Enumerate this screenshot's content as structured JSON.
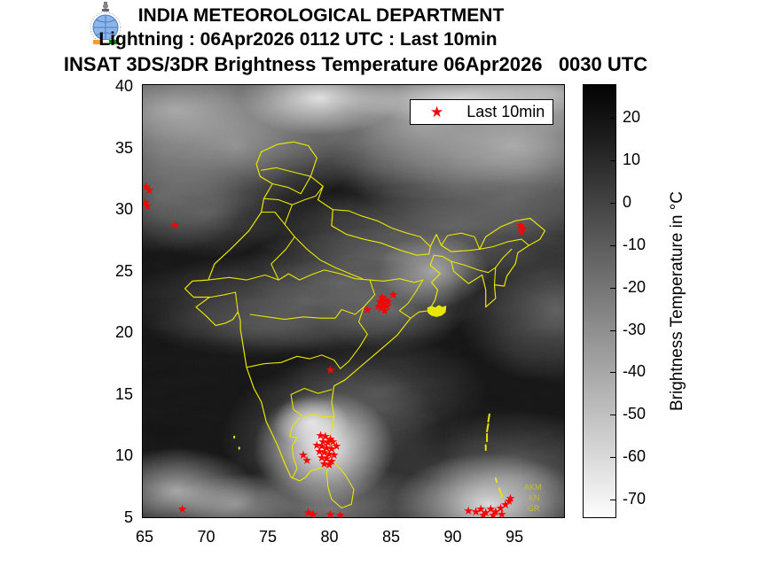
{
  "header": {
    "org": "INDIA METEOROLOGICAL DEPARTMENT",
    "subtitle": "Lightning : 06Apr2026 0112 UTC : Last 10min",
    "product_title": "INSAT 3DS/3DR Brightness Temperature 06Apr2026   0030 UTC"
  },
  "legend": {
    "marker_glyph": "★",
    "marker_color": "#ff0000",
    "label": "Last 10min"
  },
  "map_annotations": {
    "island_labels": [
      "AKM",
      "KN",
      "GR"
    ],
    "boundary_color": "#e8e600",
    "lightning_color": "#ff0000"
  },
  "colorbar": {
    "label": "Brightness Temperature in  °C",
    "ticks": [
      20,
      10,
      0,
      -10,
      -20,
      -30,
      -40,
      -50,
      -60,
      -70
    ],
    "top_color": "#000000",
    "bottom_color": "#ffffff",
    "value_range": [
      28,
      -74
    ]
  },
  "chart_data": {
    "type": "heatmap",
    "title": "INSAT 3DS/3DR Brightness Temperature 06Apr2026   0030 UTC",
    "x_ticks": [
      65,
      70,
      75,
      80,
      85,
      90,
      95
    ],
    "y_ticks": [
      40,
      35,
      30,
      25,
      20,
      15,
      10,
      5
    ],
    "x_range": [
      64.8,
      99.1
    ],
    "y_range": [
      5.0,
      40.2
    ],
    "colorbar_label": "Brightness Temperature in  °C",
    "colorbar_ticks": [
      20,
      10,
      0,
      -10,
      -20,
      -30,
      -40,
      -50,
      -60,
      -70
    ],
    "lightning_last10min_lonlat": [
      [
        65.05,
        31.9
      ],
      [
        65.3,
        31.6
      ],
      [
        65.0,
        30.6
      ],
      [
        65.15,
        30.3
      ],
      [
        67.4,
        28.8
      ],
      [
        95.4,
        28.7
      ],
      [
        95.6,
        28.5
      ],
      [
        95.5,
        28.2
      ],
      [
        84.2,
        22.9
      ],
      [
        84.5,
        22.7
      ],
      [
        84.0,
        22.5
      ],
      [
        84.3,
        22.3
      ],
      [
        84.6,
        22.2
      ],
      [
        84.1,
        22.0
      ],
      [
        84.4,
        21.8
      ],
      [
        84.7,
        22.5
      ],
      [
        83.9,
        22.2
      ],
      [
        84.3,
        22.6
      ],
      [
        83.0,
        21.9
      ],
      [
        85.1,
        23.1
      ],
      [
        80.0,
        17.0
      ],
      [
        79.2,
        11.7
      ],
      [
        79.6,
        11.6
      ],
      [
        80.0,
        11.4
      ],
      [
        79.4,
        11.2
      ],
      [
        79.8,
        11.1
      ],
      [
        80.2,
        11.2
      ],
      [
        78.9,
        10.9
      ],
      [
        79.3,
        10.8
      ],
      [
        79.7,
        10.7
      ],
      [
        80.1,
        10.6
      ],
      [
        80.5,
        10.8
      ],
      [
        79.1,
        10.4
      ],
      [
        79.5,
        10.3
      ],
      [
        79.9,
        10.2
      ],
      [
        80.3,
        10.1
      ],
      [
        79.3,
        9.9
      ],
      [
        79.7,
        9.8
      ],
      [
        80.1,
        9.6
      ],
      [
        79.5,
        9.4
      ],
      [
        79.9,
        9.3
      ],
      [
        78.1,
        9.7
      ],
      [
        77.8,
        10.1
      ],
      [
        68.0,
        5.7
      ],
      [
        78.2,
        5.4
      ],
      [
        78.6,
        5.3
      ],
      [
        80.0,
        5.3
      ],
      [
        80.8,
        5.2
      ],
      [
        91.2,
        5.6
      ],
      [
        91.8,
        5.5
      ],
      [
        92.2,
        5.7
      ],
      [
        92.6,
        5.4
      ],
      [
        93.0,
        5.7
      ],
      [
        93.4,
        5.5
      ],
      [
        93.8,
        5.8
      ],
      [
        94.2,
        6.1
      ],
      [
        94.5,
        6.4
      ],
      [
        93.2,
        5.2
      ],
      [
        92.4,
        5.2
      ],
      [
        93.9,
        5.3
      ],
      [
        94.6,
        6.6
      ]
    ]
  }
}
